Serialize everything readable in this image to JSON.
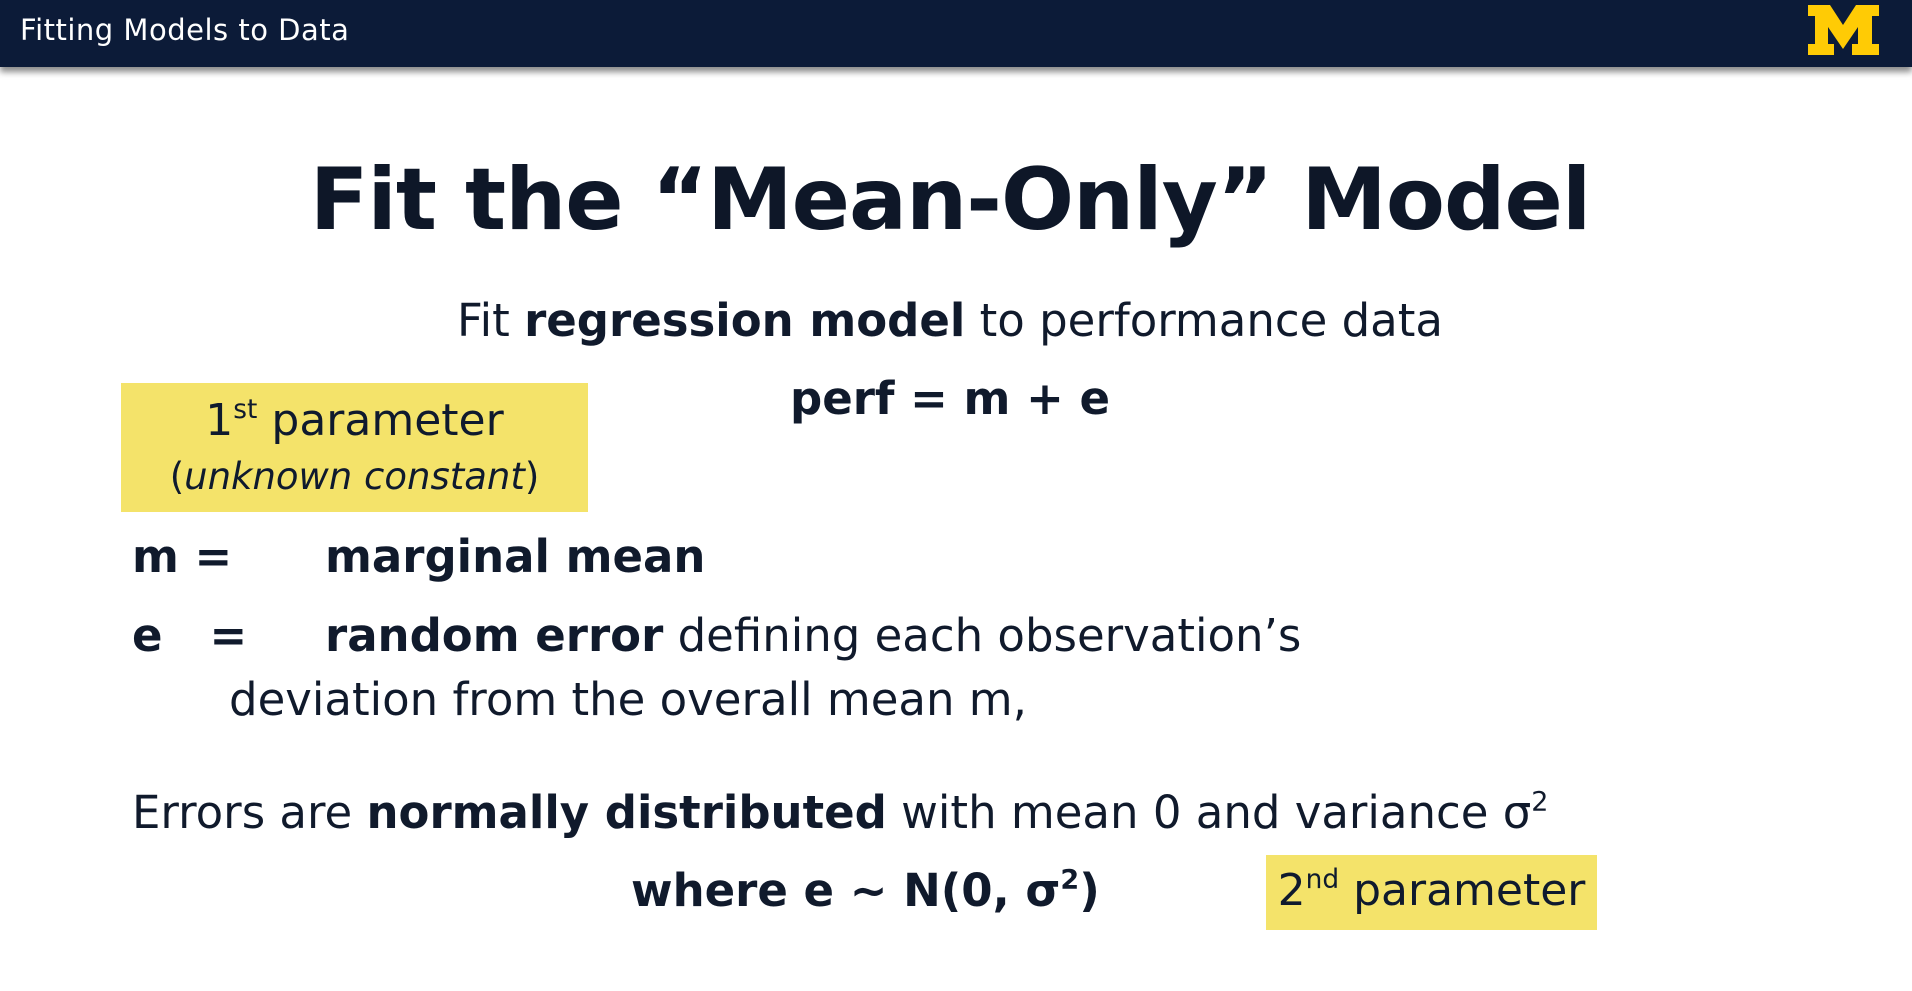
{
  "header": {
    "course_title": "Fitting Models to Data",
    "logo_letter": "M"
  },
  "slide": {
    "title": "Fit the “Mean-Only” Model",
    "subtitle_pre": "Fit ",
    "subtitle_bold": "regression model",
    "subtitle_post": " to performance data",
    "equation": "perf = m + e",
    "callout1_ordinal": "1",
    "callout1_sup": "st",
    "callout1_word": " parameter",
    "callout1_paren_open": "(",
    "callout1_note": "unknown constant",
    "callout1_paren_close": ")",
    "def_m_symbol": "m =",
    "def_m_term": "marginal mean",
    "def_e_symbol": "e   =",
    "def_e_term": "random error",
    "def_e_rest": " defining each observation’s",
    "def_e_line2": "deviation from the overall mean m,",
    "errors_pre": "Errors are ",
    "errors_bold": "normally distributed",
    "errors_post": " with mean 0 and variance σ",
    "errors_sup": "2",
    "where_pre": "where e ~ N(0, σ",
    "where_sup": "2",
    "where_post": ")",
    "callout2_ordinal": "2",
    "callout2_sup": "nd",
    "callout2_word": " parameter"
  },
  "colors": {
    "header_bg": "#0c1b38",
    "highlight": "#f4e36a",
    "logo": "#ffcb05",
    "text": "#101a2c"
  }
}
